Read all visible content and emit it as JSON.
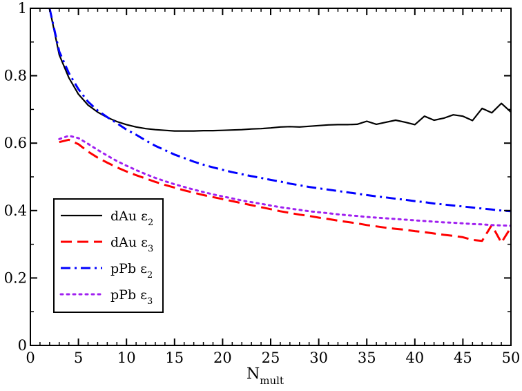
{
  "chart_data": {
    "type": "line",
    "xlabel": "N",
    "xlabel_sub": "mult",
    "ylabel": "",
    "xlim": [
      0,
      50
    ],
    "ylim": [
      0,
      1
    ],
    "xticks": [
      0,
      5,
      10,
      15,
      20,
      25,
      30,
      35,
      40,
      45,
      50
    ],
    "yticks": [
      0,
      0.2,
      0.4,
      0.6,
      0.8,
      1
    ],
    "ytick_labels": [
      "0",
      "0.2",
      "0.4",
      "0.6",
      "0.8",
      "1"
    ],
    "grid": false,
    "legend_position": "lower-left",
    "series": [
      {
        "name": "dAu ε",
        "name_sub": "2",
        "color": "#000000",
        "dash": "solid",
        "x": [
          2,
          3,
          4,
          5,
          6,
          7,
          8,
          9,
          10,
          11,
          12,
          13,
          14,
          15,
          16,
          17,
          18,
          19,
          20,
          21,
          22,
          23,
          24,
          25,
          26,
          27,
          28,
          29,
          30,
          31,
          32,
          33,
          34,
          35,
          36,
          37,
          38,
          39,
          40,
          41,
          42,
          43,
          44,
          45,
          46,
          47,
          48,
          49,
          50
        ],
        "y": [
          1.0,
          0.862,
          0.794,
          0.745,
          0.713,
          0.692,
          0.676,
          0.664,
          0.655,
          0.648,
          0.643,
          0.64,
          0.638,
          0.636,
          0.636,
          0.636,
          0.637,
          0.637,
          0.638,
          0.639,
          0.64,
          0.642,
          0.643,
          0.645,
          0.648,
          0.649,
          0.648,
          0.65,
          0.652,
          0.654,
          0.655,
          0.655,
          0.656,
          0.665,
          0.656,
          0.662,
          0.668,
          0.662,
          0.655,
          0.68,
          0.668,
          0.674,
          0.684,
          0.68,
          0.667,
          0.703,
          0.69,
          0.718,
          0.692
        ]
      },
      {
        "name": "dAu ε",
        "name_sub": "3",
        "color": "#ff0000",
        "dash": "dashed",
        "x": [
          3,
          4,
          5,
          6,
          7,
          8,
          9,
          10,
          11,
          12,
          13,
          14,
          15,
          16,
          17,
          18,
          19,
          20,
          21,
          22,
          23,
          24,
          25,
          26,
          27,
          28,
          29,
          30,
          31,
          32,
          33,
          34,
          35,
          36,
          37,
          38,
          39,
          40,
          41,
          42,
          43,
          44,
          45,
          46,
          47,
          48,
          49,
          50
        ],
        "y": [
          0.603,
          0.61,
          0.597,
          0.575,
          0.557,
          0.542,
          0.528,
          0.516,
          0.505,
          0.495,
          0.485,
          0.476,
          0.468,
          0.46,
          0.453,
          0.446,
          0.44,
          0.434,
          0.428,
          0.422,
          0.416,
          0.41,
          0.404,
          0.398,
          0.393,
          0.388,
          0.384,
          0.379,
          0.375,
          0.37,
          0.366,
          0.362,
          0.357,
          0.353,
          0.349,
          0.346,
          0.343,
          0.339,
          0.336,
          0.332,
          0.328,
          0.325,
          0.321,
          0.313,
          0.31,
          0.357,
          0.305,
          0.35
        ]
      },
      {
        "name": "pPb ε",
        "name_sub": "2",
        "color": "#0000ff",
        "dash": "dashdot",
        "x": [
          2,
          3,
          4,
          5,
          6,
          7,
          8,
          9,
          10,
          11,
          12,
          13,
          14,
          15,
          16,
          17,
          18,
          19,
          20,
          21,
          22,
          23,
          24,
          25,
          26,
          27,
          28,
          29,
          30,
          31,
          32,
          33,
          34,
          35,
          36,
          37,
          38,
          39,
          40,
          41,
          42,
          43,
          44,
          45,
          46,
          47,
          48,
          49,
          50
        ],
        "y": [
          1.0,
          0.872,
          0.808,
          0.76,
          0.723,
          0.697,
          0.677,
          0.659,
          0.64,
          0.625,
          0.608,
          0.592,
          0.579,
          0.566,
          0.556,
          0.545,
          0.536,
          0.528,
          0.521,
          0.514,
          0.508,
          0.502,
          0.497,
          0.491,
          0.486,
          0.48,
          0.475,
          0.47,
          0.466,
          0.462,
          0.458,
          0.454,
          0.45,
          0.446,
          0.442,
          0.439,
          0.435,
          0.432,
          0.428,
          0.425,
          0.421,
          0.418,
          0.415,
          0.412,
          0.409,
          0.406,
          0.403,
          0.4,
          0.398
        ]
      },
      {
        "name": "pPb ε",
        "name_sub": "3",
        "color": "#a020f0",
        "dash": "dotted",
        "x": [
          3,
          4,
          5,
          6,
          7,
          8,
          9,
          10,
          11,
          12,
          13,
          14,
          15,
          16,
          17,
          18,
          19,
          20,
          21,
          22,
          23,
          24,
          25,
          26,
          27,
          28,
          29,
          30,
          31,
          32,
          33,
          34,
          35,
          36,
          37,
          38,
          39,
          40,
          41,
          42,
          43,
          44,
          45,
          46,
          47,
          48,
          49,
          50
        ],
        "y": [
          0.612,
          0.622,
          0.615,
          0.598,
          0.58,
          0.563,
          0.547,
          0.533,
          0.52,
          0.508,
          0.497,
          0.487,
          0.478,
          0.47,
          0.462,
          0.455,
          0.448,
          0.442,
          0.436,
          0.43,
          0.425,
          0.42,
          0.415,
          0.41,
          0.406,
          0.402,
          0.398,
          0.395,
          0.392,
          0.389,
          0.386,
          0.384,
          0.381,
          0.379,
          0.377,
          0.375,
          0.373,
          0.371,
          0.369,
          0.367,
          0.365,
          0.364,
          0.362,
          0.36,
          0.359,
          0.357,
          0.356,
          0.355
        ]
      }
    ]
  }
}
